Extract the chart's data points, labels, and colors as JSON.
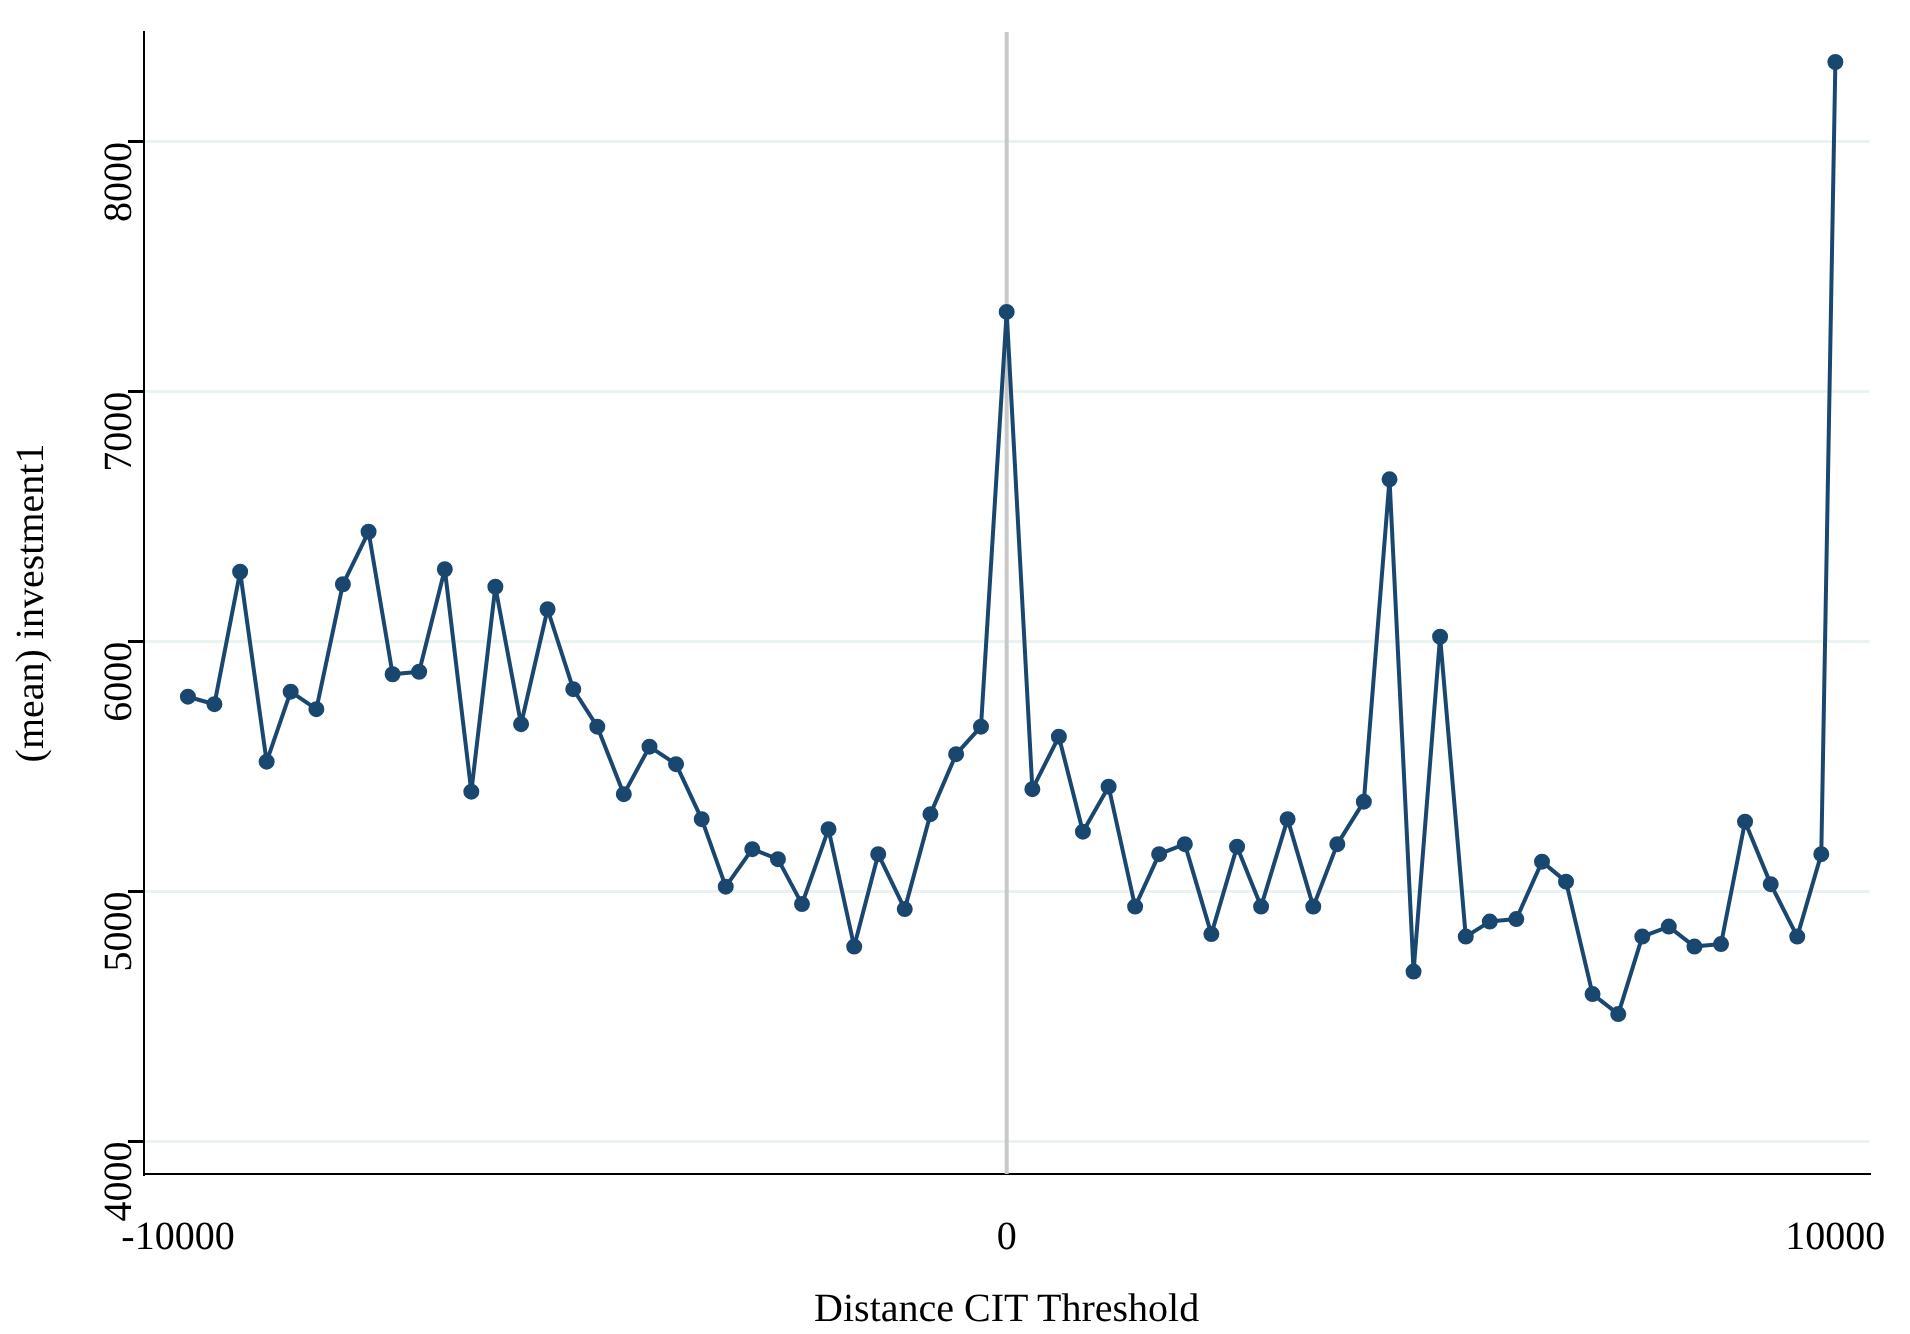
{
  "chart_data": {
    "type": "line",
    "xlabel": "Distance CIT Threshold",
    "ylabel": "(mean) investment1",
    "x": [
      -9880,
      -9560,
      -9250,
      -8930,
      -8640,
      -8330,
      -8010,
      -7700,
      -7410,
      -7090,
      -6780,
      -6460,
      -6170,
      -5860,
      -5540,
      -5230,
      -4940,
      -4620,
      -4310,
      -3990,
      -3680,
      -3390,
      -3070,
      -2760,
      -2470,
      -2150,
      -1840,
      -1550,
      -1230,
      -920,
      -610,
      -310,
      0,
      310,
      630,
      920,
      1230,
      1550,
      1840,
      2150,
      2470,
      2780,
      3070,
      3390,
      3700,
      3990,
      4310,
      4620,
      4910,
      5230,
      5540,
      5830,
      6150,
      6460,
      6750,
      7070,
      7380,
      7670,
      7990,
      8300,
      8620,
      8910,
      9220,
      9540,
      9830,
      10000
    ],
    "series": [
      {
        "color": "#1a476f",
        "values": [
          5780,
          5750,
          6280,
          5520,
          5800,
          5730,
          6230,
          6440,
          5870,
          5880,
          6290,
          5400,
          6220,
          5670,
          6130,
          5810,
          5660,
          5390,
          5580,
          5510,
          5290,
          5020,
          5170,
          5130,
          4950,
          5250,
          4780,
          5150,
          4930,
          5310,
          5550,
          5660,
          7320,
          5410,
          5620,
          5240,
          5420,
          4940,
          5150,
          5190,
          4830,
          5180,
          4940,
          5290,
          4940,
          5190,
          5360,
          6650,
          4680,
          6020,
          4820,
          4880,
          4890,
          5120,
          5040,
          4590,
          4510,
          4820,
          4860,
          4780,
          4790,
          5280,
          5030,
          4820,
          5150,
          8320
        ]
      }
    ],
    "xlim": [
      -10410,
      10410
    ],
    "xticks": [
      -10000,
      0,
      10000
    ],
    "ylim": [
      3870,
      8440
    ],
    "yticks": [
      4000,
      5000,
      6000,
      7000,
      8000
    ],
    "grid": "y",
    "marker": "circle",
    "line_style": "solid",
    "legend": false,
    "ref_lines": [
      {
        "axis": "x",
        "value": 0,
        "color": "#c8c8c8"
      }
    ]
  }
}
